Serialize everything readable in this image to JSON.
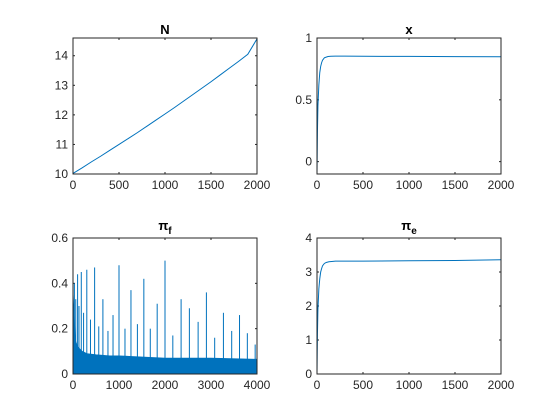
{
  "figure": {
    "background": "#ffffff",
    "line_color": "#0072bd",
    "axis_color": "#262626"
  },
  "chart_data": [
    {
      "type": "line",
      "title": "N",
      "xlim": [
        0,
        2000
      ],
      "ylim": [
        10,
        14.6
      ],
      "xticks": [
        0,
        500,
        1000,
        1500,
        2000
      ],
      "yticks": [
        10,
        11,
        12,
        13,
        14
      ],
      "xtick_labels": [
        "0",
        "500",
        "1000",
        "1500",
        "2000"
      ],
      "ytick_labels": [
        "10",
        "11",
        "12",
        "13",
        "14"
      ],
      "x": [
        0,
        100,
        200,
        300,
        400,
        500,
        600,
        700,
        800,
        900,
        1000,
        1100,
        1200,
        1300,
        1400,
        1500,
        1600,
        1700,
        1800,
        1900,
        2000
      ],
      "y": [
        10.02,
        10.21,
        10.41,
        10.6,
        10.8,
        11.0,
        11.2,
        11.4,
        11.61,
        11.82,
        12.03,
        12.24,
        12.46,
        12.68,
        12.9,
        13.12,
        13.35,
        13.58,
        13.81,
        14.05,
        14.57
      ]
    },
    {
      "type": "line",
      "title": "x",
      "xlim": [
        0,
        2000
      ],
      "ylim": [
        -0.1,
        1.0
      ],
      "xticks": [
        0,
        500,
        1000,
        1500,
        2000
      ],
      "yticks": [
        0,
        0.5,
        1
      ],
      "xtick_labels": [
        "0",
        "500",
        "1000",
        "1500",
        "2000"
      ],
      "ytick_labels": [
        "0",
        "0.5",
        "1"
      ],
      "x": [
        0,
        5,
        10,
        20,
        30,
        40,
        50,
        60,
        70,
        80,
        100,
        120,
        150,
        200,
        300,
        500,
        1000,
        1500,
        2000
      ],
      "y": [
        -0.1,
        0.25,
        0.45,
        0.62,
        0.72,
        0.77,
        0.8,
        0.82,
        0.83,
        0.84,
        0.845,
        0.85,
        0.852,
        0.853,
        0.853,
        0.852,
        0.851,
        0.849,
        0.848
      ]
    },
    {
      "type": "line",
      "title": "π",
      "title_subscript": "f",
      "xlim": [
        0,
        4000
      ],
      "ylim": [
        0,
        0.6
      ],
      "xticks": [
        0,
        1000,
        2000,
        3000,
        4000
      ],
      "yticks": [
        0,
        0.2,
        0.4,
        0.6
      ],
      "xtick_labels": [
        "0",
        "1000",
        "2000",
        "3000",
        "4000"
      ],
      "ytick_labels": [
        "0",
        "0.2",
        "0.4",
        "0.6"
      ],
      "baseline": {
        "x": [
          0,
          50,
          100,
          200,
          300,
          500,
          800,
          1000,
          1500,
          2000,
          3000,
          4000
        ],
        "y": [
          0.36,
          0.15,
          0.12,
          0.1,
          0.09,
          0.085,
          0.08,
          0.08,
          0.075,
          0.07,
          0.07,
          0.065
        ]
      },
      "spikes": {
        "x": [
          30,
          60,
          100,
          130,
          180,
          230,
          300,
          380,
          470,
          560,
          650,
          760,
          870,
          1000,
          1130,
          1260,
          1400,
          1540,
          1680,
          1830,
          2000,
          2170,
          2350,
          2530,
          2720,
          2900,
          3080,
          3270,
          3450,
          3620,
          3790,
          3960
        ],
        "y": [
          0.4,
          0.33,
          0.44,
          0.3,
          0.45,
          0.27,
          0.46,
          0.24,
          0.47,
          0.21,
          0.33,
          0.19,
          0.26,
          0.48,
          0.2,
          0.37,
          0.22,
          0.42,
          0.2,
          0.31,
          0.5,
          0.17,
          0.33,
          0.29,
          0.23,
          0.36,
          0.16,
          0.27,
          0.19,
          0.26,
          0.18,
          0.13
        ]
      }
    },
    {
      "type": "line",
      "title": "π",
      "title_subscript": "e",
      "xlim": [
        0,
        2000
      ],
      "ylim": [
        0,
        4
      ],
      "xticks": [
        0,
        500,
        1000,
        1500,
        2000
      ],
      "yticks": [
        0,
        1,
        2,
        3,
        4
      ],
      "xtick_labels": [
        "0",
        "500",
        "1000",
        "1500",
        "2000"
      ],
      "ytick_labels": [
        "0",
        "1",
        "2",
        "3",
        "4"
      ],
      "x": [
        0,
        5,
        10,
        20,
        30,
        40,
        50,
        60,
        80,
        100,
        130,
        160,
        200,
        300,
        500,
        1000,
        1500,
        2000
      ],
      "y": [
        0.0,
        1.2,
        1.9,
        2.5,
        2.8,
        3.0,
        3.1,
        3.18,
        3.25,
        3.28,
        3.3,
        3.31,
        3.32,
        3.32,
        3.32,
        3.33,
        3.34,
        3.36
      ]
    }
  ]
}
